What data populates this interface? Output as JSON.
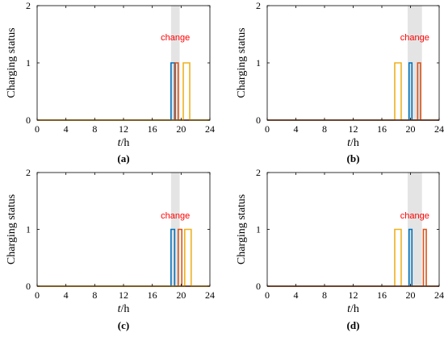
{
  "chart_data": [
    {
      "type": "line",
      "caption": "(a)",
      "xlabel_italic": "t",
      "xlabel_unit": "/h",
      "ylabel": "Charging status",
      "xlim": [
        0,
        24
      ],
      "ylim": [
        0,
        2
      ],
      "xticks": [
        "0",
        "4",
        "8",
        "12",
        "16",
        "20",
        "24"
      ],
      "yticks": [
        "0",
        "1",
        "2"
      ],
      "grid": false,
      "shade": {
        "x": [
          18.6,
          19.8
        ],
        "color": "#e4e4e4"
      },
      "annotation": {
        "text": "change",
        "x": 19.2,
        "y": 1.45,
        "color": "#ff0000"
      },
      "series": [
        {
          "color": "#0072bd",
          "intervals": [
            [
              18.6,
              19.1
            ]
          ]
        },
        {
          "color": "#d95319",
          "intervals": [
            [
              19.2,
              19.6
            ]
          ]
        },
        {
          "color": "#edb120",
          "intervals": [
            [
              20.3,
              21.2
            ]
          ]
        }
      ]
    },
    {
      "type": "line",
      "caption": "(b)",
      "xlabel_italic": "t",
      "xlabel_unit": "/h",
      "ylabel": "Charging status",
      "xlim": [
        0,
        24
      ],
      "ylim": [
        0,
        2
      ],
      "xticks": [
        "0",
        "4",
        "8",
        "12",
        "16",
        "20",
        "24"
      ],
      "yticks": [
        "0",
        "1",
        "2"
      ],
      "grid": false,
      "shade": {
        "x": [
          19.6,
          21.6
        ],
        "color": "#e4e4e4"
      },
      "annotation": {
        "text": "change",
        "x": 20.6,
        "y": 1.45,
        "color": "#ff0000"
      },
      "series": [
        {
          "color": "#edb120",
          "intervals": [
            [
              17.8,
              18.7
            ]
          ]
        },
        {
          "color": "#0072bd",
          "intervals": [
            [
              19.8,
              20.2
            ]
          ]
        },
        {
          "color": "#d95319",
          "intervals": [
            [
              21.0,
              21.4
            ]
          ]
        }
      ]
    },
    {
      "type": "line",
      "caption": "(c)",
      "xlabel_italic": "t",
      "xlabel_unit": "/h",
      "ylabel": "Charging status",
      "xlim": [
        0,
        24
      ],
      "ylim": [
        0,
        2
      ],
      "xticks": [
        "0",
        "4",
        "8",
        "12",
        "16",
        "20",
        "24"
      ],
      "yticks": [
        "0",
        "1",
        "2"
      ],
      "grid": false,
      "shade": {
        "x": [
          18.6,
          19.8
        ],
        "color": "#e4e4e4"
      },
      "annotation": {
        "text": "change",
        "x": 19.2,
        "y": 1.25,
        "color": "#ff0000"
      },
      "series": [
        {
          "color": "#0072bd",
          "intervals": [
            [
              18.6,
              19.1
            ]
          ]
        },
        {
          "color": "#d95319",
          "intervals": [
            [
              19.6,
              20.1
            ]
          ]
        },
        {
          "color": "#edb120",
          "intervals": [
            [
              20.5,
              21.4
            ]
          ]
        }
      ]
    },
    {
      "type": "line",
      "caption": "(d)",
      "xlabel_italic": "t",
      "xlabel_unit": "/h",
      "ylabel": "Charging status",
      "xlim": [
        0,
        24
      ],
      "ylim": [
        0,
        2
      ],
      "xticks": [
        "0",
        "4",
        "8",
        "12",
        "16",
        "20",
        "24"
      ],
      "yticks": [
        "0",
        "1",
        "2"
      ],
      "grid": false,
      "shade": {
        "x": [
          19.6,
          21.6
        ],
        "color": "#e4e4e4"
      },
      "annotation": {
        "text": "change",
        "x": 20.6,
        "y": 1.25,
        "color": "#ff0000"
      },
      "series": [
        {
          "color": "#edb120",
          "intervals": [
            [
              17.8,
              18.7
            ]
          ]
        },
        {
          "color": "#0072bd",
          "intervals": [
            [
              19.8,
              20.2
            ]
          ]
        },
        {
          "color": "#d95319",
          "intervals": [
            [
              21.8,
              22.2
            ]
          ]
        }
      ]
    }
  ]
}
